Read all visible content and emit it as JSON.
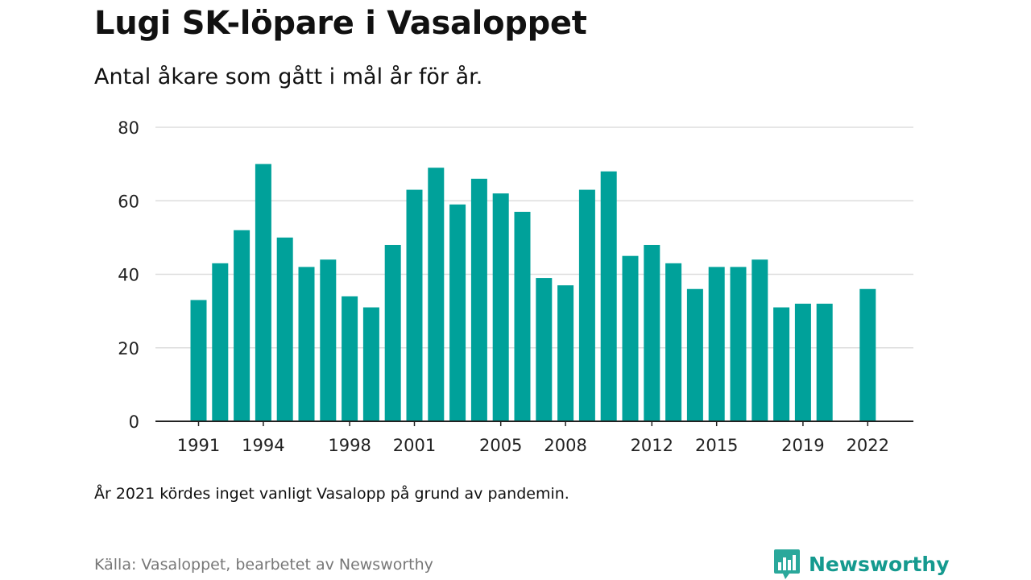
{
  "header": {
    "title": "Lugi SK-löpare i Vasaloppet",
    "subtitle": "Antal åkare som gått i mål år för år."
  },
  "footer": {
    "note": "År 2021 kördes inget vanligt Vasalopp på grund av pandemin.",
    "source": "Källa: Vasaloppet, bearbetet av Newsworthy",
    "brand": "Newsworthy"
  },
  "colors": {
    "bar": "#00a19a",
    "grid": "#dddddd",
    "axis": "#222222",
    "brand": "#159a8f"
  },
  "icons": {
    "brand_logo": "bar-chart-speech-bubble-icon"
  },
  "chart_data": {
    "type": "bar",
    "title": "Lugi SK-löpare i Vasaloppet",
    "subtitle": "Antal åkare som gått i mål år för år.",
    "xlabel": "",
    "ylabel": "",
    "ylim": [
      0,
      80
    ],
    "yticks": [
      0,
      20,
      40,
      60,
      80
    ],
    "xtick_labels": [
      "1991",
      "1994",
      "1998",
      "2001",
      "2005",
      "2008",
      "2012",
      "2015",
      "2019",
      "2022"
    ],
    "grid": true,
    "legend": "none",
    "categories": [
      "1991",
      "1992",
      "1993",
      "1994",
      "1995",
      "1996",
      "1997",
      "1998",
      "1999",
      "2000",
      "2001",
      "2002",
      "2003",
      "2004",
      "2005",
      "2006",
      "2007",
      "2008",
      "2009",
      "2010",
      "2011",
      "2012",
      "2013",
      "2014",
      "2015",
      "2016",
      "2017",
      "2018",
      "2019",
      "2020",
      "2021",
      "2022"
    ],
    "values": [
      33,
      43,
      52,
      70,
      50,
      42,
      44,
      34,
      31,
      48,
      63,
      69,
      59,
      66,
      62,
      57,
      39,
      37,
      63,
      68,
      45,
      48,
      43,
      36,
      42,
      42,
      44,
      31,
      32,
      32,
      null,
      36
    ]
  }
}
